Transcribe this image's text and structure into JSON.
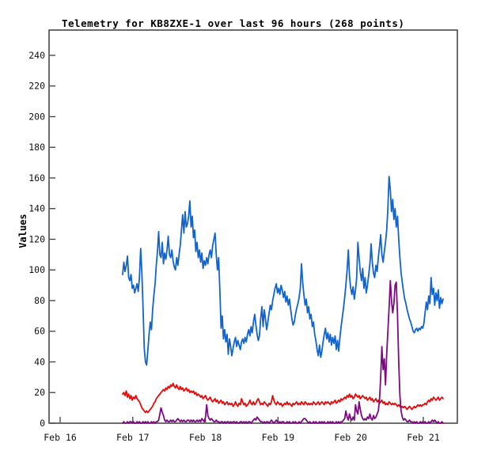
{
  "window": {
    "title": "Telemetry for KB8ZXE-1 over last 96 hours (268 points)"
  },
  "colors": {
    "background": "#ffffff",
    "border": "#3c3c3c",
    "text": "#000000",
    "series_blue": "#1263cb",
    "series_red": "#e00c0c",
    "series_purple": "#7c0a80"
  },
  "chart_data": {
    "type": "line",
    "title": "Telemetry for KB8ZXE-1 over last 96 hours (268 points)",
    "xlabel": "",
    "ylabel": "Values",
    "point_count": 268,
    "grid": false,
    "legend": "none",
    "x_axis": {
      "tick_labels": [
        "Feb 16",
        "Feb 17",
        "Feb 18",
        "Feb 19",
        "Feb 20",
        "Feb 21"
      ],
      "tick_day_offsets": [
        0,
        1,
        2,
        3,
        4,
        5
      ]
    },
    "y_axis": {
      "ticks": [
        0,
        20,
        40,
        60,
        80,
        100,
        120,
        140,
        160,
        180,
        200,
        220,
        240
      ],
      "range": [
        0,
        256.5
      ]
    },
    "series": [
      {
        "name": "series-1-blue",
        "color": "#1263cb",
        "values": [
          97,
          105,
          99,
          103,
          109,
          95,
          93,
          97,
          88,
          90,
          85,
          88,
          91,
          86,
          95,
          114,
          98,
          75,
          49,
          40,
          38,
          48,
          58,
          66,
          61,
          74,
          83,
          91,
          103,
          112,
          125,
          110,
          108,
          118,
          104,
          111,
          107,
          113,
          122,
          110,
          108,
          113,
          106,
          102,
          100,
          108,
          103,
          110,
          116,
          126,
          136,
          124,
          138,
          128,
          130,
          135,
          145,
          128,
          135,
          121,
          126,
          112,
          118,
          108,
          113,
          105,
          111,
          101,
          106,
          103,
          108,
          104,
          110,
          113,
          108,
          116,
          120,
          124,
          110,
          100,
          108,
          86,
          62,
          70,
          55,
          61,
          53,
          58,
          45,
          55,
          50,
          44,
          49,
          53,
          56,
          50,
          54,
          51,
          48,
          53,
          55,
          52,
          56,
          53,
          58,
          61,
          57,
          63,
          59,
          66,
          71,
          64,
          58,
          54,
          57,
          68,
          76,
          63,
          74,
          68,
          61,
          66,
          72,
          77,
          74,
          80,
          84,
          88,
          91,
          85,
          88,
          84,
          90,
          87,
          82,
          86,
          79,
          83,
          77,
          81,
          74,
          68,
          64,
          66,
          71,
          75,
          78,
          82,
          88,
          104,
          92,
          84,
          77,
          81,
          72,
          76,
          68,
          71,
          63,
          66,
          58,
          54,
          48,
          44,
          51,
          43,
          47,
          53,
          58,
          62,
          55,
          59,
          53,
          58,
          51,
          56,
          52,
          57,
          48,
          54,
          47,
          56,
          63,
          69,
          75,
          82,
          90,
          100,
          113,
          96,
          88,
          84,
          89,
          81,
          87,
          95,
          118,
          108,
          99,
          93,
          101,
          88,
          95,
          85,
          90,
          97,
          104,
          117,
          105,
          98,
          95,
          103,
          99,
          108,
          115,
          123,
          110,
          105,
          112,
          118,
          126,
          140,
          161,
          152,
          138,
          146,
          133,
          140,
          128,
          135,
          120,
          108,
          98,
          92,
          86,
          81,
          78,
          74,
          71,
          68,
          66,
          63,
          60,
          59,
          61,
          62,
          60,
          62,
          61,
          63,
          62,
          65,
          72,
          79,
          74,
          83,
          78,
          95,
          84,
          88,
          77,
          85,
          80,
          87,
          75,
          82,
          78,
          81
        ]
      },
      {
        "name": "series-2-red",
        "color": "#e00c0c",
        "values": [
          19,
          20,
          18,
          21,
          17,
          19,
          16,
          18,
          15,
          17,
          16,
          18,
          16,
          15,
          14,
          12,
          10,
          9,
          8,
          7,
          8,
          7,
          8,
          9,
          10,
          11,
          13,
          14,
          16,
          17,
          18,
          19,
          20,
          21,
          22,
          21,
          23,
          22,
          24,
          23,
          25,
          24,
          26,
          24,
          23,
          25,
          23,
          22,
          24,
          22,
          23,
          21,
          22,
          23,
          21,
          22,
          20,
          21,
          20,
          21,
          19,
          20,
          18,
          19,
          18,
          17,
          18,
          16,
          17,
          18,
          16,
          15,
          16,
          17,
          15,
          14,
          15,
          16,
          14,
          15,
          13,
          14,
          15,
          13,
          14,
          12,
          13,
          14,
          12,
          13,
          12,
          13,
          11,
          12,
          14,
          12,
          11,
          13,
          12,
          16,
          14,
          12,
          13,
          11,
          12,
          13,
          15,
          13,
          12,
          14,
          12,
          13,
          15,
          16,
          14,
          12,
          13,
          12,
          14,
          13,
          12,
          11,
          13,
          12,
          14,
          18,
          15,
          13,
          12,
          14,
          13,
          12,
          13,
          11,
          12,
          13,
          12,
          14,
          12,
          13,
          12,
          11,
          13,
          12,
          13,
          14,
          12,
          13,
          12,
          14,
          13,
          12,
          14,
          13,
          12,
          13,
          12,
          13,
          12,
          14,
          13,
          12,
          13,
          14,
          12,
          13,
          14,
          13,
          12,
          14,
          13,
          14,
          13,
          12,
          14,
          13,
          14,
          15,
          13,
          14,
          15,
          14,
          16,
          15,
          16,
          17,
          16,
          18,
          17,
          19,
          17,
          18,
          16,
          17,
          19,
          18,
          17,
          18,
          16,
          17,
          18,
          17,
          16,
          17,
          15,
          16,
          17,
          15,
          16,
          14,
          15,
          16,
          14,
          15,
          13,
          14,
          15,
          13,
          14,
          12,
          13,
          12,
          14,
          13,
          12,
          13,
          12,
          13,
          12,
          11,
          12,
          11,
          10,
          11,
          10,
          11,
          10,
          9,
          10,
          11,
          10,
          9,
          10,
          11,
          10,
          11,
          12,
          11,
          12,
          11,
          12,
          12,
          13,
          12,
          14,
          15,
          14,
          16,
          15,
          17,
          16,
          15,
          16,
          17,
          15,
          16,
          17,
          16
        ]
      },
      {
        "name": "series-3-purple",
        "color": "#7c0a80",
        "values": [
          0,
          1,
          0,
          0,
          1,
          0,
          1,
          1,
          0,
          1,
          0,
          0,
          1,
          0,
          1,
          0,
          0,
          1,
          0,
          1,
          0,
          1,
          0,
          0,
          1,
          0,
          1,
          0,
          1,
          1,
          2,
          6,
          10,
          7,
          5,
          2,
          1,
          2,
          1,
          1,
          2,
          1,
          2,
          1,
          1,
          2,
          3,
          2,
          1,
          2,
          1,
          2,
          1,
          1,
          2,
          2,
          1,
          2,
          1,
          2,
          1,
          1,
          2,
          1,
          2,
          1,
          3,
          2,
          1,
          4,
          12,
          5,
          3,
          2,
          3,
          2,
          1,
          1,
          2,
          1,
          1,
          0,
          1,
          1,
          0,
          1,
          0,
          1,
          1,
          0,
          1,
          0,
          1,
          1,
          0,
          1,
          0,
          0,
          1,
          1,
          0,
          1,
          0,
          1,
          0,
          1,
          1,
          0,
          1,
          2,
          3,
          2,
          4,
          3,
          2,
          1,
          1,
          0,
          1,
          0,
          1,
          1,
          0,
          1,
          2,
          1,
          0,
          1,
          2,
          1,
          0,
          1,
          0,
          1,
          1,
          0,
          0,
          1,
          0,
          1,
          0,
          0,
          1,
          0,
          1,
          0,
          0,
          1,
          0,
          1,
          2,
          3,
          3,
          2,
          1,
          0,
          1,
          0,
          0,
          1,
          0,
          1,
          0,
          0,
          1,
          0,
          1,
          0,
          1,
          0,
          0,
          1,
          0,
          1,
          0,
          1,
          0,
          0,
          1,
          0,
          1,
          0,
          1,
          1,
          2,
          3,
          8,
          4,
          2,
          6,
          3,
          2,
          4,
          2,
          12,
          8,
          6,
          14,
          9,
          5,
          3,
          2,
          3,
          2,
          4,
          3,
          6,
          3,
          2,
          5,
          3,
          4,
          6,
          8,
          15,
          30,
          50,
          35,
          42,
          25,
          45,
          60,
          75,
          93,
          80,
          72,
          78,
          90,
          92,
          70,
          40,
          18,
          8,
          4,
          2,
          3,
          2,
          1,
          1,
          2,
          1,
          1,
          0,
          1,
          0,
          1,
          0,
          0,
          1,
          0,
          1,
          0,
          1,
          0,
          0,
          1,
          0,
          1,
          2,
          1,
          2,
          1,
          0,
          1,
          0,
          0,
          1,
          0
        ]
      }
    ]
  }
}
